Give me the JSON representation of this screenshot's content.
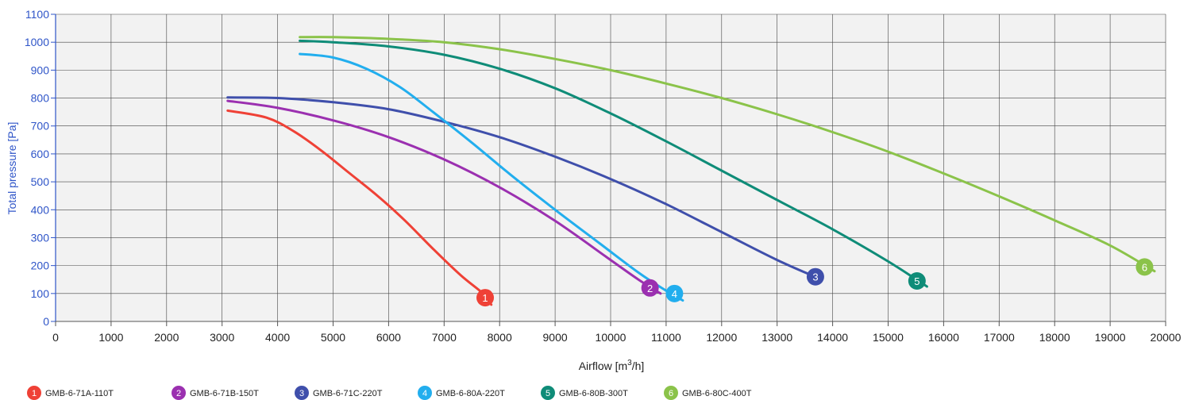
{
  "chart_data": {
    "type": "line",
    "title": "",
    "xlabel": "Airflow [m³/h]",
    "xlabel_base": "Airflow [m",
    "xlabel_sup": "3",
    "xlabel_tail": "/h]",
    "ylabel": "Total pressure [Pa]",
    "xlim": [
      0,
      20000
    ],
    "ylim": [
      0,
      1100
    ],
    "x_ticks": [
      "0",
      "1000",
      "2000",
      "3000",
      "4000",
      "5000",
      "6000",
      "7000",
      "8000",
      "9000",
      "10000",
      "11000",
      "12000",
      "13000",
      "14000",
      "15000",
      "16000",
      "17000",
      "18000",
      "19000",
      "20000"
    ],
    "y_ticks": [
      "0",
      "100",
      "200",
      "300",
      "400",
      "500",
      "600",
      "700",
      "800",
      "900",
      "1000",
      "1100"
    ],
    "grid": true,
    "legend_position": "bottom-left",
    "colors": {
      "ytick_label": "#2f55c8",
      "ylabel": "#2f55c8",
      "plot_background": "#f2f2f2",
      "grid": "#444444",
      "axis": "#2f55c8"
    },
    "series": [
      {
        "name": "GMB-6-71A-110T",
        "marker_label": "1",
        "color": "#ef4136",
        "points": [
          [
            3100,
            755
          ],
          [
            3800,
            730
          ],
          [
            4300,
            680
          ],
          [
            4800,
            610
          ],
          [
            5300,
            530
          ],
          [
            5800,
            450
          ],
          [
            6300,
            360
          ],
          [
            6800,
            260
          ],
          [
            7300,
            165
          ],
          [
            7700,
            100
          ],
          [
            7850,
            60
          ]
        ],
        "marker": [
          7740,
          85
        ]
      },
      {
        "name": "GMB-6-71B-150T",
        "marker_label": "2",
        "color": "#9b30b0",
        "points": [
          [
            3100,
            790
          ],
          [
            4000,
            765
          ],
          [
            5000,
            720
          ],
          [
            6000,
            660
          ],
          [
            7000,
            580
          ],
          [
            8000,
            480
          ],
          [
            9000,
            360
          ],
          [
            10000,
            220
          ],
          [
            10500,
            150
          ],
          [
            10900,
            100
          ]
        ],
        "marker": [
          10710,
          120
        ]
      },
      {
        "name": "GMB-6-71C-220T",
        "marker_label": "3",
        "color": "#3f4fab",
        "points": [
          [
            3100,
            802
          ],
          [
            4000,
            800
          ],
          [
            5000,
            785
          ],
          [
            6000,
            760
          ],
          [
            7000,
            715
          ],
          [
            8000,
            660
          ],
          [
            9000,
            590
          ],
          [
            10000,
            510
          ],
          [
            11000,
            420
          ],
          [
            12000,
            320
          ],
          [
            13000,
            220
          ],
          [
            13800,
            150
          ]
        ],
        "marker": [
          13690,
          160
        ]
      },
      {
        "name": "GMB-6-80A-220T",
        "marker_label": "4",
        "color": "#22aeee",
        "points": [
          [
            4400,
            958
          ],
          [
            5000,
            945
          ],
          [
            5600,
            905
          ],
          [
            6200,
            840
          ],
          [
            6800,
            750
          ],
          [
            7500,
            640
          ],
          [
            8200,
            525
          ],
          [
            9000,
            400
          ],
          [
            9800,
            280
          ],
          [
            10500,
            175
          ],
          [
            11000,
            110
          ],
          [
            11300,
            75
          ]
        ],
        "marker": [
          11150,
          100
        ]
      },
      {
        "name": "GMB-6-80B-300T",
        "marker_label": "5",
        "color": "#0f8c78",
        "points": [
          [
            4400,
            1005
          ],
          [
            5000,
            1000
          ],
          [
            6000,
            985
          ],
          [
            7000,
            955
          ],
          [
            8000,
            905
          ],
          [
            9000,
            835
          ],
          [
            10000,
            745
          ],
          [
            11000,
            645
          ],
          [
            12000,
            540
          ],
          [
            13000,
            435
          ],
          [
            14000,
            330
          ],
          [
            15000,
            215
          ],
          [
            15700,
            125
          ]
        ],
        "marker": [
          15520,
          145
        ]
      },
      {
        "name": "GMB-6-80C-400T",
        "marker_label": "6",
        "color": "#8bc34a",
        "points": [
          [
            4400,
            1018
          ],
          [
            5000,
            1018
          ],
          [
            6000,
            1012
          ],
          [
            7000,
            1000
          ],
          [
            8000,
            975
          ],
          [
            9000,
            940
          ],
          [
            10000,
            900
          ],
          [
            11000,
            852
          ],
          [
            12000,
            800
          ],
          [
            13000,
            742
          ],
          [
            14000,
            678
          ],
          [
            15000,
            608
          ],
          [
            16000,
            530
          ],
          [
            17000,
            448
          ],
          [
            18000,
            362
          ],
          [
            19000,
            272
          ],
          [
            19800,
            180
          ]
        ],
        "marker": [
          19620,
          195
        ]
      }
    ]
  }
}
